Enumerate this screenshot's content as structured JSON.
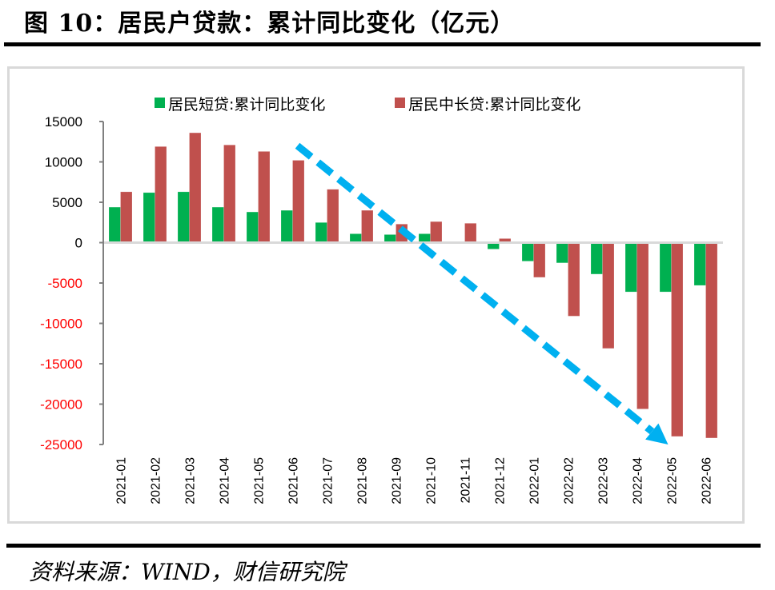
{
  "header": {
    "title": "图 10：居民户贷款：累计同比变化（亿元）"
  },
  "footer": {
    "source": "资料来源：WIND，财信研究院"
  },
  "colors": {
    "short_series": "#00b050",
    "long_series": "#c0504d",
    "arrow": "#00b0f0",
    "negative_tick": "#ff0000",
    "positive_tick": "#000000",
    "axis": "#808080",
    "zero_line": "#d9d9d9"
  },
  "chart_data": {
    "type": "bar",
    "title": "居民户贷款：累计同比变化（亿元）",
    "xlabel": "",
    "ylabel": "",
    "ylim": [
      -25000,
      15000
    ],
    "yticks": [
      15000,
      10000,
      5000,
      0,
      -5000,
      -10000,
      -15000,
      -20000,
      -25000
    ],
    "negative_ticks_red": true,
    "legend_position": "top",
    "grid": false,
    "categories": [
      "2021-01",
      "2021-02",
      "2021-03",
      "2021-04",
      "2021-05",
      "2021-06",
      "2021-07",
      "2021-08",
      "2021-09",
      "2021-10",
      "2021-11",
      "2021-12",
      "2022-01",
      "2022-02",
      "2022-03",
      "2022-04",
      "2022-05",
      "2022-06"
    ],
    "series": [
      {
        "name": "居民短贷:累计同比变化",
        "color": "#00b050",
        "values": [
          4400,
          6200,
          6300,
          4400,
          3800,
          4000,
          2500,
          1100,
          1000,
          1100,
          100,
          -800,
          -2300,
          -2500,
          -3900,
          -6100,
          -6100,
          -5300
        ]
      },
      {
        "name": "居民中长贷:累计同比变化",
        "color": "#c0504d",
        "values": [
          6300,
          11900,
          13600,
          12100,
          11300,
          10200,
          6600,
          4000,
          2300,
          2600,
          2400,
          500,
          -4300,
          -9100,
          -13100,
          -20600,
          -24000,
          -24200
        ]
      }
    ],
    "annotations": [
      {
        "type": "dashed-arrow",
        "description": "downward trend arrow",
        "from": {
          "category": "2021-06",
          "value": 12000
        },
        "to": {
          "category": "2022-05",
          "value": -25000
        },
        "color": "#00b0f0"
      }
    ]
  }
}
